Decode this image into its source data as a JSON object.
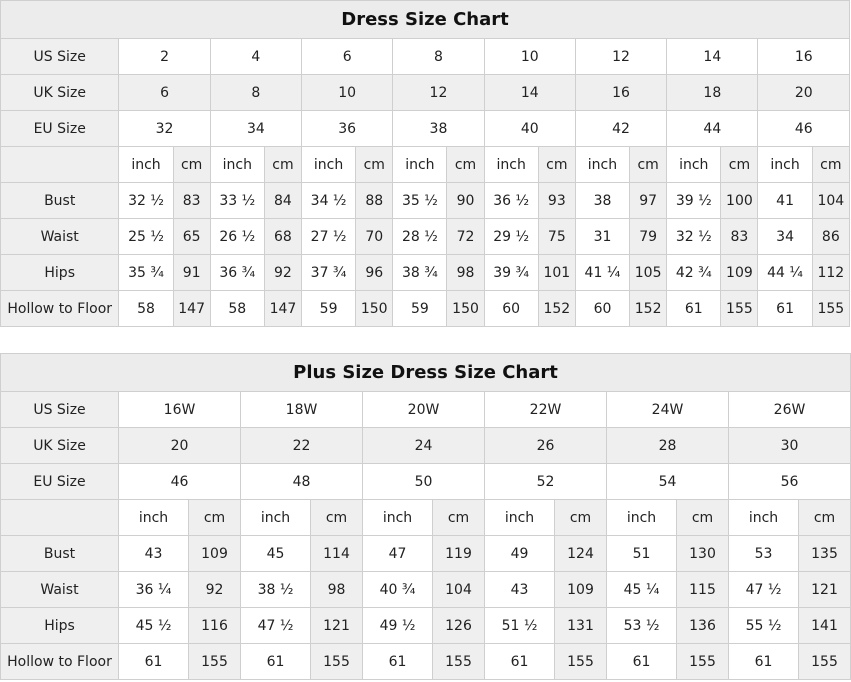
{
  "charts": [
    {
      "title": "Dress Size Chart",
      "sizes": [
        {
          "label": "US Size",
          "values": [
            "2",
            "4",
            "6",
            "8",
            "10",
            "12",
            "14",
            "16"
          ]
        },
        {
          "label": "UK Size",
          "values": [
            "6",
            "8",
            "10",
            "12",
            "14",
            "16",
            "18",
            "20"
          ]
        },
        {
          "label": "EU Size",
          "values": [
            "32",
            "34",
            "36",
            "38",
            "40",
            "42",
            "44",
            "46"
          ]
        }
      ],
      "unit_labels": [
        "inch",
        "cm"
      ],
      "measures": [
        {
          "label": "Bust",
          "values": [
            "32 ½",
            "83",
            "33 ½",
            "84",
            "34 ½",
            "88",
            "35 ½",
            "90",
            "36 ½",
            "93",
            "38",
            "97",
            "39 ½",
            "100",
            "41",
            "104"
          ]
        },
        {
          "label": "Waist",
          "values": [
            "25 ½",
            "65",
            "26 ½",
            "68",
            "27 ½",
            "70",
            "28 ½",
            "72",
            "29 ½",
            "75",
            "31",
            "79",
            "32 ½",
            "83",
            "34",
            "86"
          ]
        },
        {
          "label": "Hips",
          "values": [
            "35 ¾",
            "91",
            "36 ¾",
            "92",
            "37 ¾",
            "96",
            "38 ¾",
            "98",
            "39 ¾",
            "101",
            "41 ¼",
            "105",
            "42 ¾",
            "109",
            "44 ¼",
            "112"
          ]
        },
        {
          "label": "Hollow to Floor",
          "values": [
            "58",
            "147",
            "58",
            "147",
            "59",
            "150",
            "59",
            "150",
            "60",
            "152",
            "60",
            "152",
            "61",
            "155",
            "61",
            "155"
          ]
        }
      ]
    },
    {
      "title": "Plus Size Dress Size Chart",
      "sizes": [
        {
          "label": "US Size",
          "values": [
            "16W",
            "18W",
            "20W",
            "22W",
            "24W",
            "26W"
          ]
        },
        {
          "label": "UK Size",
          "values": [
            "20",
            "22",
            "24",
            "26",
            "28",
            "30"
          ]
        },
        {
          "label": "EU Size",
          "values": [
            "46",
            "48",
            "50",
            "52",
            "54",
            "56"
          ]
        }
      ],
      "unit_labels": [
        "inch",
        "cm"
      ],
      "measures": [
        {
          "label": "Bust",
          "values": [
            "43",
            "109",
            "45",
            "114",
            "47",
            "119",
            "49",
            "124",
            "51",
            "130",
            "53",
            "135"
          ]
        },
        {
          "label": "Waist",
          "values": [
            "36 ¼",
            "92",
            "38 ½",
            "98",
            "40 ¾",
            "104",
            "43",
            "109",
            "45 ¼",
            "115",
            "47 ½",
            "121"
          ]
        },
        {
          "label": "Hips",
          "values": [
            "45 ½",
            "116",
            "47 ½",
            "121",
            "49 ½",
            "126",
            "51 ½",
            "131",
            "53 ½",
            "136",
            "55 ½",
            "141"
          ]
        },
        {
          "label": "Hollow to Floor",
          "values": [
            "61",
            "155",
            "61",
            "155",
            "61",
            "155",
            "61",
            "155",
            "61",
            "155",
            "61",
            "155"
          ]
        }
      ]
    }
  ],
  "colors": {
    "header_bg": "#ececec",
    "alt_bg": "#efefef",
    "border": "#cfcfcf"
  }
}
